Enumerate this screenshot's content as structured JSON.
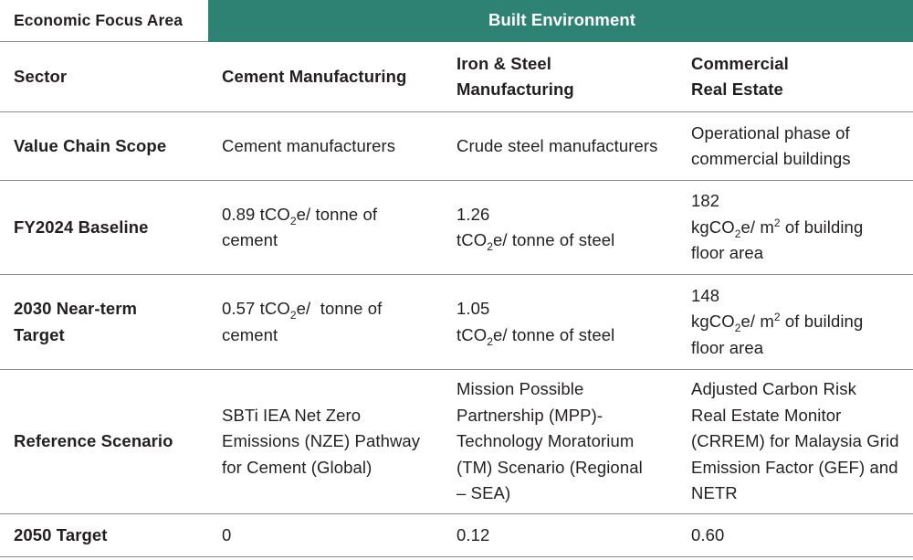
{
  "header": {
    "focus_label": "Economic Focus Area",
    "focus_value": "Built Environment"
  },
  "sector": {
    "label": "Sector",
    "cement": "Cement Manufacturing",
    "steel_line1": "Iron & Steel",
    "steel_line2": "Manufacturing",
    "cre_line1": "Commercial",
    "cre_line2": "Real Estate"
  },
  "value_chain": {
    "label": "Value Chain Scope",
    "cement": "Cement manufacturers",
    "steel": "Crude steel manufacturers",
    "cre_line1": "Operational phase of",
    "cre_line2": "commercial buildings"
  },
  "baseline": {
    "label": "FY2024 Baseline",
    "cement_value": "0.89 tCO",
    "cement_sub": "2",
    "cement_after": "e/ tonne of",
    "cement_line2": "cement",
    "steel_value": "1.26",
    "steel_unit": "tCO",
    "steel_sub": "2",
    "steel_after": "e/ tonne of steel",
    "cre_value": "182",
    "cre_unit": "kgCO",
    "cre_sub": "2",
    "cre_mid": "e/ m",
    "cre_sup": "2",
    "cre_after": " of building",
    "cre_line3": "floor area"
  },
  "near_term": {
    "label_line1": "2030 Near-term",
    "label_line2": "Target",
    "cement_value": "0.57 tCO",
    "cement_sub": "2",
    "cement_after": "e/  tonne of",
    "cement_line2": "cement",
    "steel_value": "1.05",
    "steel_unit": "tCO",
    "steel_sub": "2",
    "steel_after": "e/ tonne of steel",
    "cre_value": "148",
    "cre_unit": "kgCO",
    "cre_sub": "2",
    "cre_mid": "e/ m",
    "cre_sup": "2",
    "cre_after": " of building",
    "cre_line3": "floor area"
  },
  "reference": {
    "label": "Reference Scenario",
    "cement_lines": [
      "SBTi IEA Net Zero",
      "Emissions (NZE) Pathway",
      "for Cement (Global)"
    ],
    "steel_lines": [
      "Mission Possible",
      "Partnership (MPP)-",
      "Technology Moratorium",
      "(TM) Scenario (Regional",
      "– SEA)"
    ],
    "cre_lines": [
      "Adjusted Carbon Risk",
      "Real Estate Monitor",
      "(CRREM) for Malaysia Grid",
      "Emission Factor (GEF) and",
      "NETR"
    ]
  },
  "target_2050": {
    "label": "2050 Target",
    "cement": "0",
    "steel": "0.12",
    "cre": "0.60"
  }
}
